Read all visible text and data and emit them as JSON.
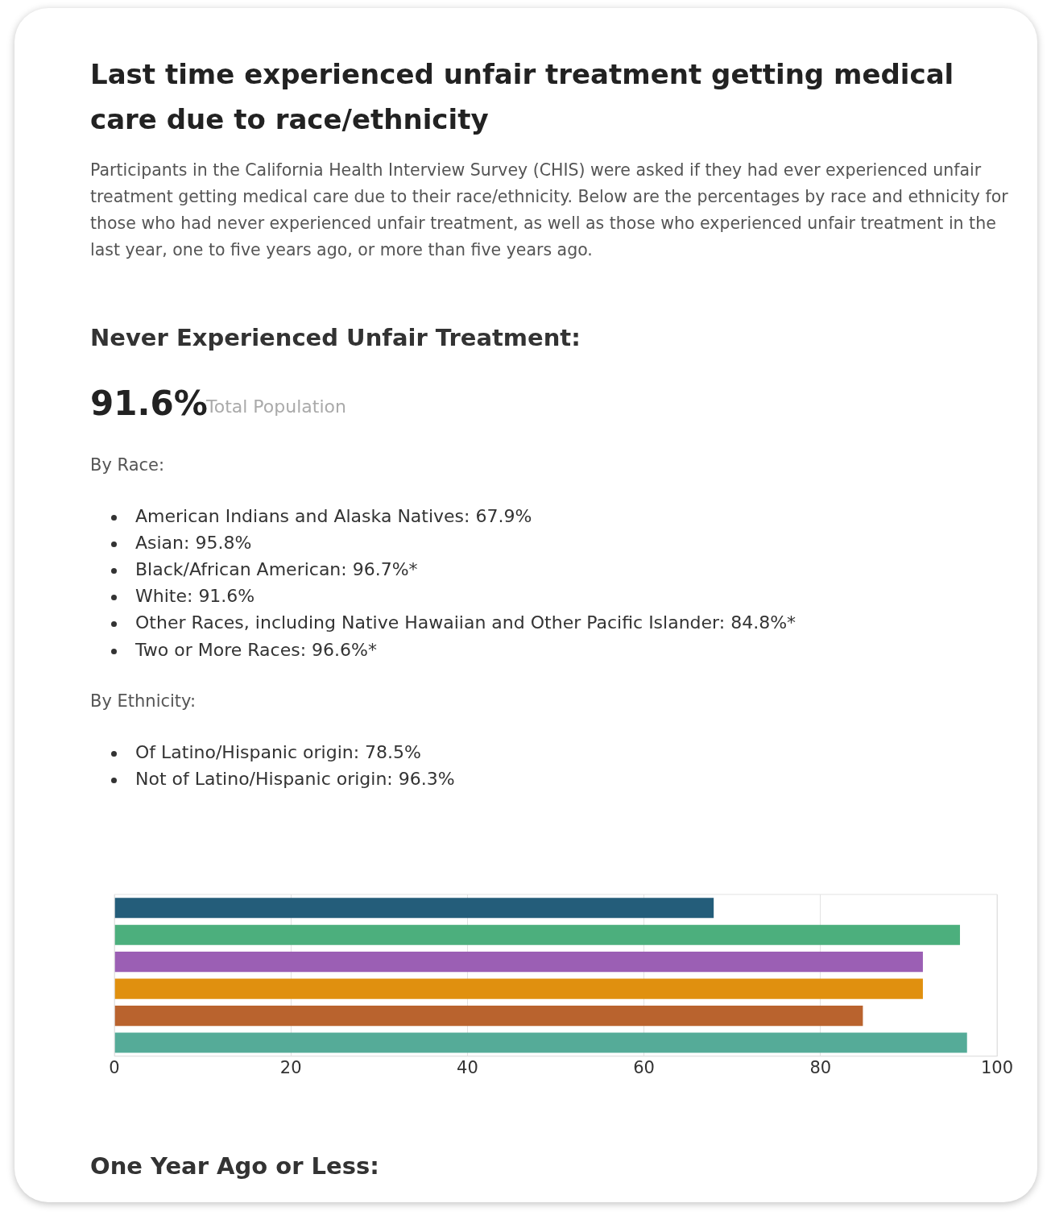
{
  "chart_data": {
    "type": "bar",
    "orientation": "horizontal",
    "title": "Last time experienced unfair treatment getting medical care due to race/ethnicity",
    "subtitle": "Participants in the California Health Interview Survey (CHIS) were asked if they had ever experienced unfair treatment getting medical care due to their race/ethnicity. Below are the percentages by race and ethnicity for those who had never experienced unfair treatment, as well as those who experienced unfair treatment in the last year, one to five years ago, or more than five years ago.",
    "annotations": [
      "Never Experienced Unfair Treatment:",
      "91.6%",
      "Total Population",
      "By Race:",
      "American Indians and Alaska Natives:  67.9%",
      "Asian:  95.8%",
      "Black/African American: 96.7%*",
      "White: 91.6%",
      "Other Races, including Native Hawaiian and Other Pacific Islander: 84.8%*",
      "Two or More Races: 96.6%*",
      "By Ethnicity:",
      "Of Latino/Hispanic origin: 78.5%",
      "Not of Latino/Hispanic origin: 96.3%",
      "One Year Ago or Less:"
    ],
    "categories": [
      null,
      null,
      null,
      null,
      null,
      null
    ],
    "values": [
      67.9,
      95.8,
      91.6,
      91.6,
      84.8,
      96.6
    ],
    "colors": [
      "#245d7a",
      "#4caf7d",
      "#9b5fb4",
      "#e0900f",
      "#b9632e",
      "#55ab98"
    ],
    "xlim": [
      0,
      100
    ],
    "xticks": [
      0,
      20,
      40,
      60,
      80,
      100
    ],
    "grid": "x",
    "legend": false
  }
}
